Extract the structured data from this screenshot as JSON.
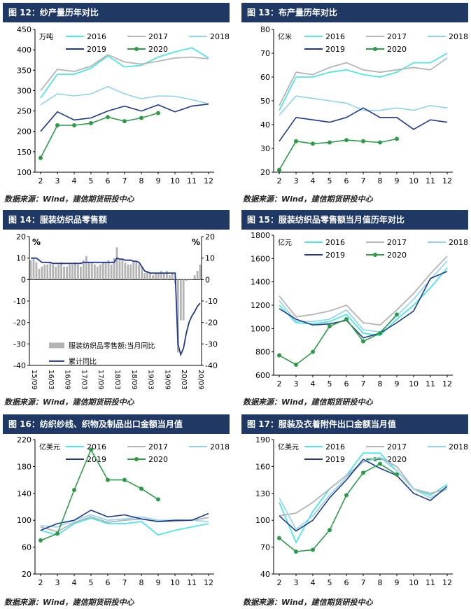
{
  "panels": [
    {
      "title": "图 12：纱产量历年对比",
      "source": "数据来源：Wind，建信期货研投中心",
      "chart_data": {
        "type": "line",
        "unit": "万吨",
        "x": [
          2,
          3,
          4,
          5,
          6,
          7,
          8,
          9,
          10,
          11,
          12
        ],
        "xticks": [
          "2",
          "3",
          "4",
          "5",
          "6",
          "7",
          "8",
          "9",
          "10",
          "11",
          "12"
        ],
        "ylim": [
          100,
          450
        ],
        "yticks": [
          100,
          150,
          200,
          250,
          300,
          350,
          400,
          450
        ],
        "legend_rows": [
          [
            "2016",
            "2017",
            "2018"
          ],
          [
            "2019",
            "2020"
          ]
        ],
        "series": [
          {
            "name": "2016",
            "color": "#4ee6e6",
            "width": 1.8,
            "values": [
              282,
              340,
              340,
              355,
              385,
              358,
              362,
              382,
              395,
              405,
              380
            ]
          },
          {
            "name": "2017",
            "color": "#b5b5b5",
            "width": 1.8,
            "values": [
              300,
              352,
              347,
              360,
              388,
              370,
              365,
              372,
              380,
              382,
              378
            ]
          },
          {
            "name": "2018",
            "color": "#8fd3f0",
            "width": 1.6,
            "values": [
              265,
              292,
              287,
              292,
              310,
              292,
              280,
              287,
              286,
              278,
              268
            ]
          },
          {
            "name": "2019",
            "color": "#1f3a8a",
            "width": 1.6,
            "values": [
              200,
              248,
              228,
              233,
              250,
              262,
              250,
              265,
              248,
              262,
              267
            ]
          },
          {
            "name": "2020",
            "color": "#2e9b4a",
            "width": 1.6,
            "marker": true,
            "values": [
              135,
              215,
              215,
              220,
              235,
              225,
              233,
              245,
              null,
              null,
              null
            ]
          }
        ]
      }
    },
    {
      "title": "图 13：布产量历年对比",
      "source": "数据来源：Wind，建信期货研投中心",
      "chart_data": {
        "type": "line",
        "unit": "亿米",
        "x": [
          2,
          3,
          4,
          5,
          6,
          7,
          8,
          9,
          10,
          11,
          12
        ],
        "xticks": [
          "2",
          "3",
          "4",
          "5",
          "6",
          "7",
          "8",
          "9",
          "10",
          "11",
          "12"
        ],
        "ylim": [
          20,
          80
        ],
        "yticks": [
          20,
          30,
          40,
          50,
          60,
          70,
          80
        ],
        "legend_rows": [
          [
            "2016",
            "2017",
            "2018"
          ],
          [
            "2019",
            "2020"
          ]
        ],
        "series": [
          {
            "name": "2016",
            "color": "#4ee6e6",
            "width": 1.8,
            "values": [
              46,
              60,
              60,
              62,
              63,
              61,
              60,
              62,
              66,
              66,
              70
            ]
          },
          {
            "name": "2017",
            "color": "#b5b5b5",
            "width": 1.8,
            "values": [
              48,
              62,
              61,
              64,
              66,
              63,
              62,
              63,
              64,
              63,
              68
            ]
          },
          {
            "name": "2018",
            "color": "#8fd3f0",
            "width": 1.6,
            "values": [
              44,
              52,
              51,
              50,
              49,
              46,
              46,
              47,
              46,
              48,
              47
            ]
          },
          {
            "name": "2019",
            "color": "#1f3a8a",
            "width": 1.6,
            "values": [
              33,
              43,
              42,
              41,
              43,
              47,
              43,
              43,
              38,
              42,
              41
            ]
          },
          {
            "name": "2020",
            "color": "#2e9b4a",
            "width": 1.6,
            "marker": true,
            "values": [
              21,
              33,
              32,
              32.5,
              33.5,
              33,
              32.5,
              34,
              null,
              null,
              null
            ]
          }
        ]
      }
    },
    {
      "title": "图 14：服装纺织品零售额",
      "source": "数据来源：Wind，建信期货研投中心",
      "chart_data": {
        "type": "bar",
        "unit_left": "%",
        "unit_right": "%",
        "ylim": [
          -40,
          20
        ],
        "yticks": [
          -40,
          -30,
          -20,
          -10,
          0,
          10,
          20
        ],
        "xticks": [
          "15/09",
          "16/03",
          "16/09",
          "17/03",
          "17/09",
          "18/03",
          "18/09",
          "19/03",
          "19/09",
          "20/03",
          "20/09"
        ],
        "legend": [
          "服装纺织品零售额:当月同比",
          "累计同比"
        ],
        "bar_values": [
          9,
          10,
          8,
          5,
          6,
          7,
          7,
          8,
          7,
          6,
          7,
          8,
          6,
          6,
          7,
          7,
          8,
          7,
          6,
          9,
          11,
          8,
          8,
          7,
          6,
          7,
          8,
          8,
          9,
          7,
          10,
          15,
          9,
          9,
          8,
          7,
          7,
          8,
          8,
          7,
          6,
          3,
          4,
          3,
          2,
          3,
          3,
          4,
          3,
          4,
          2,
          3,
          -2,
          -34,
          -19,
          -19,
          -0.6,
          -0.3,
          -0.1,
          2,
          4,
          7
        ],
        "cum_values": [
          10,
          10,
          10,
          9,
          8,
          8,
          8,
          8,
          7.5,
          7.5,
          7.5,
          7.5,
          7.5,
          7.5,
          7.5,
          7.5,
          7.5,
          7.5,
          7.5,
          8,
          8,
          8,
          8,
          8,
          8,
          8,
          8,
          8,
          8,
          8,
          8,
          10,
          9.5,
          9.5,
          9,
          9,
          9,
          8.5,
          8.5,
          8,
          6,
          4,
          3.5,
          3,
          3,
          3,
          3,
          3,
          3,
          3,
          3,
          3,
          3,
          -30,
          -35,
          -32,
          -25,
          -20,
          -17,
          -15,
          -12.5,
          -11
        ]
      }
    },
    {
      "title": "图 15：服装纺织品零售额当月值历年对比",
      "source": "数据来源：Wind，建信期货研投中心",
      "chart_data": {
        "type": "line",
        "unit": "亿元",
        "x": [
          2,
          3,
          4,
          5,
          6,
          7,
          8,
          9,
          10,
          11,
          12
        ],
        "xticks": [
          "2",
          "3",
          "4",
          "5",
          "6",
          "7",
          "8",
          "9",
          "10",
          "11",
          "12"
        ],
        "ylim": [
          600,
          1800
        ],
        "yticks": [
          600,
          800,
          1000,
          1200,
          1400,
          1600,
          1800
        ],
        "legend_rows": [
          [
            "2016",
            "2017",
            "2018"
          ],
          [
            "2019",
            "2020"
          ]
        ],
        "series": [
          {
            "name": "2016",
            "color": "#4ee6e6",
            "width": 1.8,
            "values": [
              1200,
              1050,
              1040,
              1060,
              1120,
              960,
              940,
              1080,
              1200,
              1350,
              1520
            ]
          },
          {
            "name": "2017",
            "color": "#b5b5b5",
            "width": 1.8,
            "values": [
              1280,
              1100,
              1120,
              1150,
              1200,
              1050,
              1030,
              1160,
              1300,
              1470,
              1620
            ]
          },
          {
            "name": "2018",
            "color": "#8fd3f0",
            "width": 1.6,
            "values": [
              1240,
              1060,
              1060,
              1080,
              1160,
              990,
              970,
              1110,
              1250,
              1420,
              1580
            ]
          },
          {
            "name": "2019",
            "color": "#1f3a8a",
            "width": 1.6,
            "values": [
              1170,
              1080,
              1030,
              1040,
              1070,
              920,
              960,
              1050,
              1150,
              1430,
              1490
            ]
          },
          {
            "name": "2020",
            "color": "#2e9b4a",
            "width": 1.6,
            "marker": true,
            "values": [
              770,
              690,
              800,
              1020,
              1080,
              890,
              960,
              1120,
              null,
              null,
              null
            ]
          }
        ]
      }
    },
    {
      "title": "图 16：纺织纱线、织物及制品出口金额当月值",
      "source": "数据来源：Wind，建信期货研投中心",
      "chart_data": {
        "type": "line",
        "unit": "亿美元",
        "x": [
          2,
          3,
          4,
          5,
          6,
          7,
          8,
          9,
          10,
          11,
          12
        ],
        "xticks": [
          "2",
          "3",
          "4",
          "5",
          "6",
          "7",
          "8",
          "9",
          "10",
          "11",
          "12"
        ],
        "ylim": [
          20,
          220
        ],
        "yticks": [
          20,
          60,
          100,
          140,
          180,
          220
        ],
        "legend_rows": [
          [
            "2016",
            "2017",
            "2018"
          ],
          [
            "2019",
            "2020"
          ]
        ],
        "series": [
          {
            "name": "2016",
            "color": "#4ee6e6",
            "width": 1.8,
            "values": [
              85,
              78,
              95,
              103,
              95,
              95,
              98,
              78,
              85,
              90,
              95
            ]
          },
          {
            "name": "2017",
            "color": "#b5b5b5",
            "width": 1.8,
            "values": [
              90,
              83,
              97,
              105,
              97,
              100,
              102,
              98,
              98,
              100,
              104
            ]
          },
          {
            "name": "2018",
            "color": "#8fd3f0",
            "width": 1.6,
            "values": [
              92,
              90,
              100,
              108,
              100,
              102,
              105,
              100,
              100,
              100,
              98
            ]
          },
          {
            "name": "2019",
            "color": "#1f3a8a",
            "width": 1.6,
            "values": [
              85,
              95,
              100,
              115,
              105,
              108,
              102,
              98,
              100,
              100,
              110
            ]
          },
          {
            "name": "2020",
            "color": "#2e9b4a",
            "width": 1.6,
            "marker": true,
            "values": [
              70,
              80,
              145,
              205,
              160,
              160,
              147,
              131,
              null,
              null,
              null
            ]
          }
        ]
      }
    },
    {
      "title": "图 17：服装及衣着附件出口金额当月值",
      "source": "数据来源：Wind，建信期货研投中心",
      "chart_data": {
        "type": "line",
        "unit": "亿美元",
        "x": [
          2,
          3,
          4,
          5,
          6,
          7,
          8,
          9,
          10,
          11,
          12
        ],
        "xticks": [
          "2",
          "3",
          "4",
          "5",
          "6",
          "7",
          "8",
          "9",
          "10",
          "11",
          "12"
        ],
        "ylim": [
          40,
          190
        ],
        "yticks": [
          40,
          70,
          100,
          130,
          160,
          190
        ],
        "legend_rows": [
          [
            "2016",
            "2017",
            "2018"
          ],
          [
            "2019",
            "2020"
          ]
        ],
        "series": [
          {
            "name": "2016",
            "color": "#4ee6e6",
            "width": 1.8,
            "values": [
              120,
              75,
              110,
              135,
              150,
              175,
              175,
              155,
              135,
              128,
              140
            ]
          },
          {
            "name": "2017",
            "color": "#b5b5b5",
            "width": 1.8,
            "values": [
              105,
              108,
              120,
              135,
              150,
              165,
              170,
              160,
              135,
              130,
              135
            ]
          },
          {
            "name": "2018",
            "color": "#8fd3f0",
            "width": 1.6,
            "values": [
              125,
              90,
              105,
              128,
              148,
              165,
              170,
              155,
              135,
              125,
              135
            ]
          },
          {
            "name": "2019",
            "color": "#1f3a8a",
            "width": 1.6,
            "values": [
              105,
              88,
              100,
              125,
              145,
              168,
              158,
              150,
              130,
              122,
              138
            ]
          },
          {
            "name": "2020",
            "color": "#2e9b4a",
            "width": 1.6,
            "marker": true,
            "values": [
              80,
              65,
              67,
              89,
              128,
              153,
              163,
              151,
              null,
              null,
              null
            ]
          }
        ]
      }
    }
  ]
}
